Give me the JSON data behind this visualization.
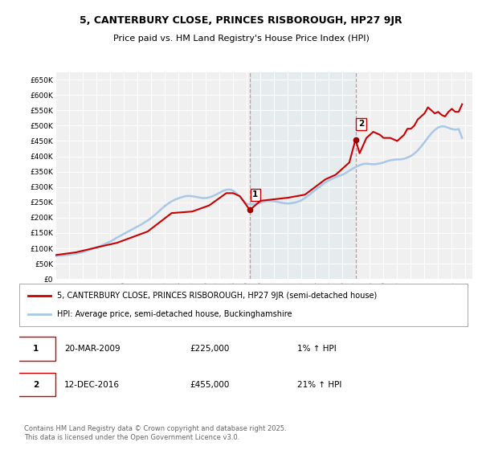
{
  "title": "5, CANTERBURY CLOSE, PRINCES RISBOROUGH, HP27 9JR",
  "subtitle": "Price paid vs. HM Land Registry's House Price Index (HPI)",
  "ylabel_ticks": [
    "£0",
    "£50K",
    "£100K",
    "£150K",
    "£200K",
    "£250K",
    "£300K",
    "£350K",
    "£400K",
    "£450K",
    "£500K",
    "£550K",
    "£600K",
    "£650K"
  ],
  "ylim": [
    0,
    675000
  ],
  "yticks": [
    0,
    50000,
    100000,
    150000,
    200000,
    250000,
    300000,
    350000,
    400000,
    450000,
    500000,
    550000,
    600000,
    650000
  ],
  "xmin": 1995,
  "xmax": 2025.5,
  "bg_color": "#ffffff",
  "plot_bg": "#f0f0f0",
  "grid_color": "#ffffff",
  "line_color_hpi": "#a8c8e8",
  "line_color_price": "#cc0000",
  "marker1_x": 2009.22,
  "marker1_y": 225000,
  "marker2_x": 2016.95,
  "marker2_y": 455000,
  "marker1_label": "1",
  "marker2_label": "2",
  "marker_color": "#990000",
  "vline_color": "#ee8888",
  "legend_line1": "5, CANTERBURY CLOSE, PRINCES RISBOROUGH, HP27 9JR (semi-detached house)",
  "legend_line2": "HPI: Average price, semi-detached house, Buckinghamshire",
  "ann1_box": "1",
  "ann1_date": "20-MAR-2009",
  "ann1_price": "£225,000",
  "ann1_hpi": "1% ↑ HPI",
  "ann2_box": "2",
  "ann2_date": "12-DEC-2016",
  "ann2_price": "£455,000",
  "ann2_hpi": "21% ↑ HPI",
  "footer": "Contains HM Land Registry data © Crown copyright and database right 2025.\nThis data is licensed under the Open Government Licence v3.0.",
  "title_fontsize": 9,
  "subtitle_fontsize": 8,
  "tick_fontsize": 6.5,
  "legend_fontsize": 7,
  "ann_fontsize": 7.5,
  "footer_fontsize": 6,
  "hpi_data_x": [
    1995,
    1995.25,
    1995.5,
    1995.75,
    1996,
    1996.25,
    1996.5,
    1996.75,
    1997,
    1997.25,
    1997.5,
    1997.75,
    1998,
    1998.25,
    1998.5,
    1998.75,
    1999,
    1999.25,
    1999.5,
    1999.75,
    2000,
    2000.25,
    2000.5,
    2000.75,
    2001,
    2001.25,
    2001.5,
    2001.75,
    2002,
    2002.25,
    2002.5,
    2002.75,
    2003,
    2003.25,
    2003.5,
    2003.75,
    2004,
    2004.25,
    2004.5,
    2004.75,
    2005,
    2005.25,
    2005.5,
    2005.75,
    2006,
    2006.25,
    2006.5,
    2006.75,
    2007,
    2007.25,
    2007.5,
    2007.75,
    2008,
    2008.25,
    2008.5,
    2008.75,
    2009,
    2009.25,
    2009.5,
    2009.75,
    2010,
    2010.25,
    2010.5,
    2010.75,
    2011,
    2011.25,
    2011.5,
    2011.75,
    2012,
    2012.25,
    2012.5,
    2012.75,
    2013,
    2013.25,
    2013.5,
    2013.75,
    2014,
    2014.25,
    2014.5,
    2014.75,
    2015,
    2015.25,
    2015.5,
    2015.75,
    2016,
    2016.25,
    2016.5,
    2016.75,
    2017,
    2017.25,
    2017.5,
    2017.75,
    2018,
    2018.25,
    2018.5,
    2018.75,
    2019,
    2019.25,
    2019.5,
    2019.75,
    2020,
    2020.25,
    2020.5,
    2020.75,
    2021,
    2021.25,
    2021.5,
    2021.75,
    2022,
    2022.25,
    2022.5,
    2022.75,
    2023,
    2023.25,
    2023.5,
    2023.75,
    2024,
    2024.25,
    2024.5,
    2024.75
  ],
  "hpi_data_y": [
    75000,
    76000,
    77000,
    78000,
    79000,
    81000,
    83000,
    85000,
    88000,
    91000,
    95000,
    99000,
    103000,
    107000,
    112000,
    117000,
    122000,
    128000,
    135000,
    141000,
    147000,
    153000,
    159000,
    165000,
    171000,
    177000,
    184000,
    191000,
    199000,
    208000,
    218000,
    228000,
    238000,
    246000,
    253000,
    259000,
    263000,
    267000,
    270000,
    271000,
    270000,
    268000,
    266000,
    264000,
    264000,
    266000,
    270000,
    275000,
    281000,
    287000,
    291000,
    292000,
    288000,
    279000,
    267000,
    255000,
    245000,
    243000,
    244000,
    246000,
    249000,
    252000,
    254000,
    254000,
    253000,
    251000,
    249000,
    247000,
    246000,
    247000,
    249000,
    252000,
    257000,
    264000,
    272000,
    281000,
    290000,
    298000,
    307000,
    315000,
    321000,
    327000,
    332000,
    336000,
    340000,
    346000,
    353000,
    360000,
    366000,
    371000,
    375000,
    376000,
    375000,
    374000,
    375000,
    377000,
    380000,
    384000,
    387000,
    389000,
    390000,
    390000,
    392000,
    396000,
    401000,
    409000,
    419000,
    432000,
    446000,
    461000,
    475000,
    486000,
    494000,
    498000,
    497000,
    493000,
    489000,
    487000,
    489000,
    460000
  ],
  "price_data_x": [
    1995.0,
    1996.5,
    1998.5,
    1999.5,
    2001.75,
    2003.5,
    2005.0,
    2006.25,
    2007.5,
    2008.0,
    2008.5,
    2009.22,
    2010.0,
    2011.0,
    2012.0,
    2013.25,
    2014.0,
    2014.75,
    2015.5,
    2016.0,
    2016.5,
    2016.95,
    2017.25,
    2017.75,
    2018.25,
    2018.75,
    2019.0,
    2019.5,
    2020.0,
    2020.5,
    2020.75,
    2021.0,
    2021.25,
    2021.5,
    2021.75,
    2022.0,
    2022.25,
    2022.5,
    2022.75,
    2023.0,
    2023.25,
    2023.5,
    2023.75,
    2024.0,
    2024.25,
    2024.5,
    2024.75
  ],
  "price_data_y": [
    78000,
    87000,
    108000,
    118000,
    155000,
    215000,
    220000,
    240000,
    280000,
    280000,
    270000,
    225000,
    255000,
    260000,
    265000,
    275000,
    300000,
    325000,
    340000,
    360000,
    380000,
    455000,
    410000,
    460000,
    480000,
    470000,
    460000,
    460000,
    450000,
    470000,
    490000,
    490000,
    500000,
    520000,
    530000,
    540000,
    560000,
    550000,
    540000,
    545000,
    535000,
    530000,
    545000,
    555000,
    545000,
    545000,
    570000
  ],
  "shade_x1": 2009.22,
  "shade_x2": 2016.95
}
